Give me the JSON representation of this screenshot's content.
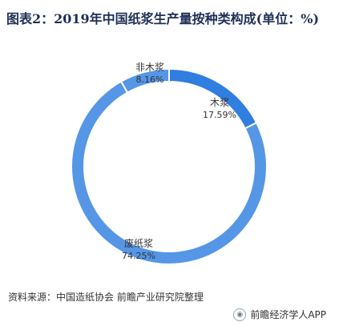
{
  "title": "图表2：2019年中国纸浆生产量按种类构成(单位：%)",
  "source": "资料来源：中国造纸协会 前瞻产业研究院整理",
  "brand": {
    "text": "前瞻经济学人APP",
    "icon": "eye-logo-icon"
  },
  "colors": {
    "title": "#1e2f55",
    "slices": [
      "#2f7ee0",
      "#5596e6",
      "#5596e6"
    ],
    "separator": "#ffffff"
  },
  "chart_data": {
    "type": "pie",
    "variant": "donut",
    "title": "图表2：2019年中国纸浆生产量按种类构成(单位：%)",
    "unit": "%",
    "categories": [
      "木浆",
      "废纸浆",
      "非木浆"
    ],
    "values": [
      17.59,
      74.25,
      8.16
    ],
    "value_labels": [
      "17.59%",
      "74.25%",
      "8.16%"
    ],
    "start_angle_deg": 0,
    "direction": "clockwise",
    "legend": "none"
  }
}
